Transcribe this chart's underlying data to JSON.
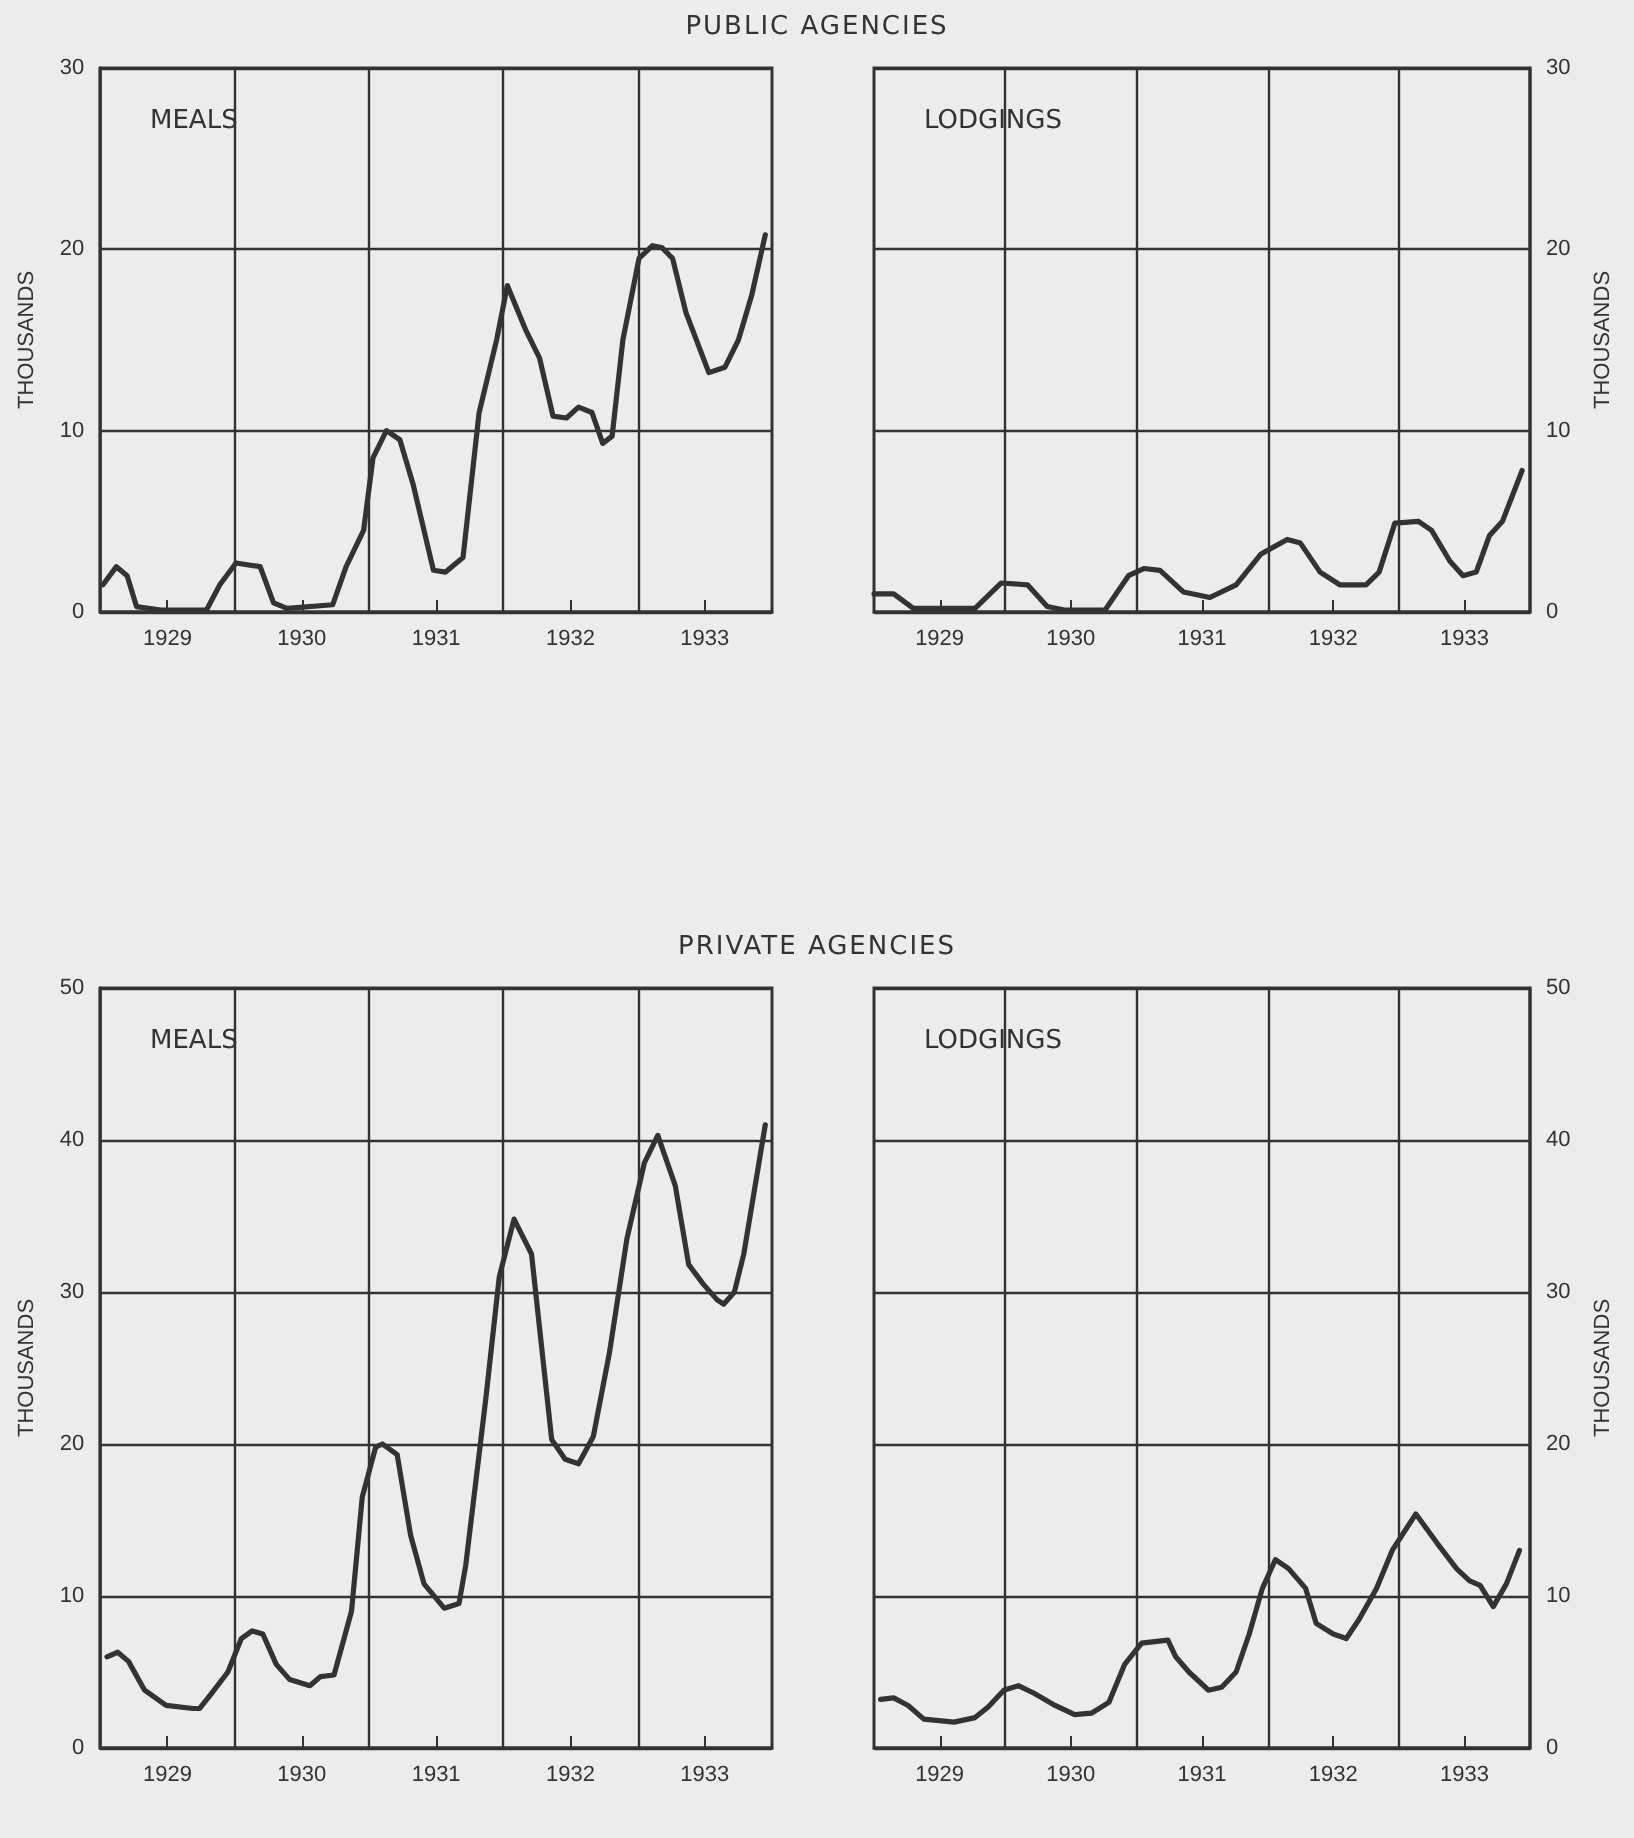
{
  "chart_data": [
    {
      "type": "line",
      "title": "PUBLIC AGENCIES",
      "annotations": [
        "MEALS"
      ],
      "ylabel": "THOUSANDS",
      "xlim": [
        1928.5,
        1933.5
      ],
      "xticks": [
        1929,
        {
          "value": 1929.5,
          "label": null
        },
        1930,
        {
          "value": 1930.5,
          "label": null
        },
        1931,
        {
          "value": 1931.5,
          "label": null
        },
        1932,
        {
          "value": 1932.5,
          "label": null
        },
        1933
      ],
      "ylim": [
        0,
        30
      ],
      "yticks": [
        0,
        10,
        20,
        30
      ],
      "grid": true,
      "marker": "none",
      "line_style": "solid",
      "series": [
        {
          "color": "#333333",
          "x": [
            1928.52,
            1928.62,
            1928.7,
            1928.77,
            1928.95,
            1929.29,
            1929.39,
            1929.51,
            1929.69,
            1929.79,
            1929.89,
            1930.23,
            1930.33,
            1930.46,
            1930.53,
            1930.63,
            1930.73,
            1930.83,
            1930.98,
            1931.07,
            1931.2,
            1931.32,
            1931.45,
            1931.53,
            1931.67,
            1931.77,
            1931.87,
            1931.97,
            1932.06,
            1932.16,
            1932.24,
            1932.31,
            1932.39,
            1932.51,
            1932.61,
            1932.68,
            1932.76,
            1932.86,
            1933.03,
            1933.15,
            1933.25,
            1933.35,
            1933.45
          ],
          "values": [
            1.5,
            2.5,
            2,
            0.3,
            0.1,
            0.1,
            1.5,
            2.7,
            2.5,
            0.5,
            0.2,
            0.4,
            2.5,
            4.5,
            8.5,
            10,
            9.5,
            7,
            2.3,
            2.2,
            3,
            11,
            15,
            18,
            15.5,
            14,
            10.8,
            10.7,
            11.3,
            11,
            9.3,
            9.7,
            15,
            19.5,
            20.2,
            20.1,
            19.5,
            16.5,
            13.2,
            13.5,
            15,
            17.5,
            20.8
          ]
        }
      ]
    },
    {
      "type": "line",
      "annotations": [
        "LODGINGS"
      ],
      "y2label": "THOUSANDS",
      "xlim": [
        1928.5,
        1933.5
      ],
      "xticks": [
        1929,
        {
          "value": 1929.5,
          "label": null
        },
        1930,
        {
          "value": 1930.5,
          "label": null
        },
        1931,
        {
          "value": 1931.5,
          "label": null
        },
        1932,
        {
          "value": 1932.5,
          "label": null
        },
        1933
      ],
      "y2lim": [
        0,
        30
      ],
      "y2ticks": [
        0,
        10,
        20,
        30
      ],
      "grid": true,
      "marker": "none",
      "line_style": "solid",
      "series": [
        {
          "color": "#333333",
          "axis": "y2",
          "x": [
            1928.5,
            1928.65,
            1928.8,
            1929.27,
            1929.47,
            1929.67,
            1929.82,
            1929.96,
            1930.26,
            1930.44,
            1930.56,
            1930.68,
            1930.86,
            1931.06,
            1931.26,
            1931.45,
            1931.65,
            1931.75,
            1931.9,
            1932.05,
            1932.25,
            1932.35,
            1932.47,
            1932.65,
            1932.75,
            1932.89,
            1932.99,
            1933.09,
            1933.19,
            1933.29,
            1933.44
          ],
          "values": [
            1,
            1,
            0.2,
            0.2,
            1.6,
            1.5,
            0.3,
            0.1,
            0.1,
            2,
            2.4,
            2.3,
            1.1,
            0.8,
            1.5,
            3.2,
            4,
            3.8,
            2.2,
            1.5,
            1.5,
            2.2,
            4.9,
            5,
            4.5,
            2.8,
            2,
            2.2,
            4.2,
            5,
            7.8
          ]
        }
      ]
    },
    {
      "type": "line",
      "title": "PRIVATE AGENCIES",
      "annotations": [
        "MEALS"
      ],
      "ylabel": "THOUSANDS",
      "xlim": [
        1928.5,
        1933.5
      ],
      "xticks": [
        1929,
        {
          "value": 1929.5,
          "label": null
        },
        1930,
        {
          "value": 1930.5,
          "label": null
        },
        1931,
        {
          "value": 1931.5,
          "label": null
        },
        1932,
        {
          "value": 1932.5,
          "label": null
        },
        1933
      ],
      "ylim": [
        0,
        50
      ],
      "yticks": [
        0,
        10,
        20,
        30,
        40,
        50
      ],
      "grid": true,
      "marker": "none",
      "line_style": "solid",
      "series": [
        {
          "color": "#333333",
          "x": [
            1928.55,
            1928.63,
            1928.71,
            1928.83,
            1928.99,
            1929.19,
            1929.24,
            1929.32,
            1929.45,
            1929.55,
            1929.63,
            1929.71,
            1929.81,
            1929.91,
            1930.06,
            1930.14,
            1930.24,
            1930.37,
            1930.45,
            1930.55,
            1930.6,
            1930.71,
            1930.81,
            1930.91,
            1931.06,
            1931.17,
            1931.22,
            1931.37,
            1931.47,
            1931.58,
            1931.71,
            1931.86,
            1931.96,
            1932.06,
            1932.17,
            1932.29,
            1932.42,
            1932.55,
            1932.65,
            1932.78,
            1932.88,
            1932.99,
            1933.09,
            1933.14,
            1933.22,
            1933.29,
            1933.45
          ],
          "values": [
            6,
            6.3,
            5.7,
            3.8,
            2.8,
            2.6,
            2.6,
            3.5,
            5,
            7.2,
            7.7,
            7.5,
            5.5,
            4.5,
            4.1,
            4.7,
            4.8,
            9,
            16.5,
            19.8,
            20,
            19.3,
            14,
            10.8,
            9.2,
            9.5,
            12,
            23,
            31,
            34.8,
            32.5,
            20.3,
            19,
            18.7,
            20.5,
            26,
            33.5,
            38.5,
            40.3,
            37,
            31.8,
            30.5,
            29.5,
            29.2,
            30,
            32.5,
            41
          ]
        }
      ]
    },
    {
      "type": "line",
      "annotations": [
        "LODGINGS"
      ],
      "y2label": "THOUSANDS",
      "xlim": [
        1928.5,
        1933.5
      ],
      "xticks": [
        1929,
        {
          "value": 1929.5,
          "label": null
        },
        1930,
        {
          "value": 1930.5,
          "label": null
        },
        1931,
        {
          "value": 1931.5,
          "label": null
        },
        1932,
        {
          "value": 1932.5,
          "label": null
        },
        1933
      ],
      "y2lim": [
        0,
        50
      ],
      "y2ticks": [
        0,
        10,
        20,
        30,
        40,
        50
      ],
      "grid": true,
      "marker": "none",
      "line_style": "solid",
      "series": [
        {
          "color": "#333333",
          "axis": "y2",
          "x": [
            1928.55,
            1928.65,
            1928.76,
            1928.88,
            1929.11,
            1929.27,
            1929.37,
            1929.49,
            1929.6,
            1929.72,
            1929.88,
            1930.03,
            1930.16,
            1930.29,
            1930.41,
            1930.54,
            1930.74,
            1930.8,
            1930.9,
            1931.05,
            1931.15,
            1931.26,
            1931.36,
            1931.46,
            1931.56,
            1931.66,
            1931.79,
            1931.87,
            1932,
            1932.1,
            1932.2,
            1932.33,
            1932.45,
            1932.63,
            1932.79,
            1932.94,
            1933.04,
            1933.12,
            1933.22,
            1933.32,
            1933.42
          ],
          "values": [
            3.2,
            3.3,
            2.8,
            1.9,
            1.7,
            2,
            2.7,
            3.8,
            4.1,
            3.6,
            2.8,
            2.2,
            2.3,
            3,
            5.5,
            6.9,
            7.1,
            6,
            5,
            3.8,
            4,
            5,
            7.5,
            10.5,
            12.4,
            11.8,
            10.5,
            8.2,
            7.5,
            7.2,
            8.5,
            10.5,
            13,
            15.4,
            13.5,
            11.8,
            11,
            10.7,
            9.3,
            10.8,
            13
          ]
        }
      ]
    }
  ]
}
